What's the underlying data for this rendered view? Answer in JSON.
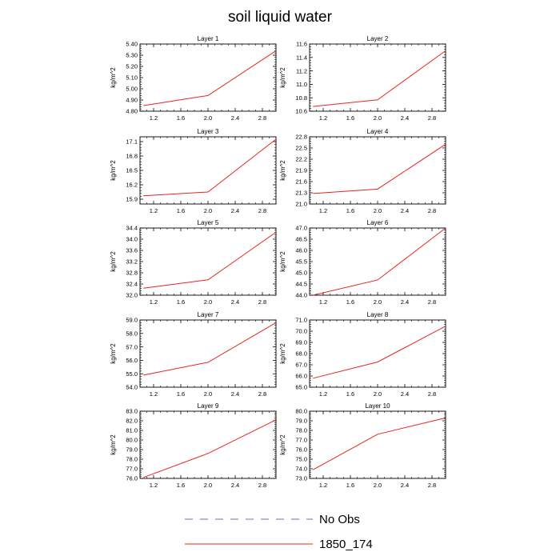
{
  "figure": {
    "title": "soil liquid water"
  },
  "legend": {
    "entries": [
      {
        "label": "No Obs",
        "color": "#4b3f9a",
        "style": "dashed"
      },
      {
        "label": "1850_174",
        "color": "#e8251f",
        "style": "solid"
      }
    ]
  },
  "chart_data": [
    {
      "type": "line",
      "title": "Layer 1",
      "ylabel": "kg/m^2",
      "xlim": [
        1.0,
        3.0
      ],
      "xticks": [
        1.2,
        1.6,
        2.0,
        2.4,
        2.8
      ],
      "xticklabels": [
        "1.2",
        "1.6",
        "2.0",
        "2.4",
        "2.8"
      ],
      "ylim": [
        4.8,
        5.4
      ],
      "yticks": [
        4.8,
        4.9,
        5.0,
        5.1,
        5.2,
        5.3,
        5.4
      ],
      "yticklabels": [
        "4.80",
        "4.90",
        "5.00",
        "5.10",
        "5.20",
        "5.30",
        "5.40"
      ],
      "series": [
        {
          "name": "1850_174",
          "x": [
            1.05,
            2.0,
            3.0
          ],
          "y": [
            4.85,
            4.94,
            5.34
          ]
        }
      ]
    },
    {
      "type": "line",
      "title": "Layer 2",
      "ylabel": "kg/m^2",
      "xlim": [
        1.0,
        3.0
      ],
      "xticks": [
        1.2,
        1.6,
        2.0,
        2.4,
        2.8
      ],
      "xticklabels": [
        "1.2",
        "1.6",
        "2.0",
        "2.4",
        "2.8"
      ],
      "ylim": [
        10.6,
        11.6
      ],
      "yticks": [
        10.6,
        10.8,
        11.0,
        11.2,
        11.4,
        11.6
      ],
      "yticklabels": [
        "10.6",
        "10.8",
        "11.0",
        "11.2",
        "11.4",
        "11.6"
      ],
      "series": [
        {
          "name": "1850_174",
          "x": [
            1.05,
            2.0,
            3.0
          ],
          "y": [
            10.67,
            10.77,
            11.5
          ]
        }
      ]
    },
    {
      "type": "line",
      "title": "Layer 3",
      "ylabel": "kg/m^2",
      "xlim": [
        1.0,
        3.0
      ],
      "xticks": [
        1.2,
        1.6,
        2.0,
        2.4,
        2.8
      ],
      "xticklabels": [
        "1.2",
        "1.6",
        "2.0",
        "2.4",
        "2.8"
      ],
      "ylim": [
        15.8,
        17.2
      ],
      "yticks": [
        15.9,
        16.2,
        16.5,
        16.8,
        17.1
      ],
      "yticklabels": [
        "15.9",
        "16.2",
        "16.5",
        "16.8",
        "17.1"
      ],
      "series": [
        {
          "name": "1850_174",
          "x": [
            1.05,
            2.0,
            3.0
          ],
          "y": [
            15.97,
            16.05,
            17.15
          ]
        }
      ]
    },
    {
      "type": "line",
      "title": "Layer 4",
      "ylabel": "kg/m^2",
      "xlim": [
        1.0,
        3.0
      ],
      "xticks": [
        1.2,
        1.6,
        2.0,
        2.4,
        2.8
      ],
      "xticklabels": [
        "1.2",
        "1.6",
        "2.0",
        "2.4",
        "2.8"
      ],
      "ylim": [
        21.0,
        22.8
      ],
      "yticks": [
        21.0,
        21.3,
        21.6,
        21.9,
        22.2,
        22.5,
        22.8
      ],
      "yticklabels": [
        "21.0",
        "21.3",
        "21.6",
        "21.9",
        "22.2",
        "22.5",
        "22.8"
      ],
      "series": [
        {
          "name": "1850_174",
          "x": [
            1.05,
            2.0,
            3.0
          ],
          "y": [
            21.28,
            21.4,
            22.6
          ]
        }
      ]
    },
    {
      "type": "line",
      "title": "Layer 5",
      "ylabel": "kg/m^2",
      "xlim": [
        1.0,
        3.0
      ],
      "xticks": [
        1.2,
        1.6,
        2.0,
        2.4,
        2.8
      ],
      "xticklabels": [
        "1.2",
        "1.6",
        "2.0",
        "2.4",
        "2.8"
      ],
      "ylim": [
        32.0,
        34.4
      ],
      "yticks": [
        32.0,
        32.4,
        32.8,
        33.2,
        33.6,
        34.0,
        34.4
      ],
      "yticklabels": [
        "32.0",
        "32.4",
        "32.8",
        "33.2",
        "33.6",
        "34.0",
        "34.4"
      ],
      "series": [
        {
          "name": "1850_174",
          "x": [
            1.05,
            2.0,
            3.0
          ],
          "y": [
            32.25,
            32.55,
            34.25
          ]
        }
      ]
    },
    {
      "type": "line",
      "title": "Layer 6",
      "ylabel": "kg/m^2",
      "xlim": [
        1.0,
        3.0
      ],
      "xticks": [
        1.2,
        1.6,
        2.0,
        2.4,
        2.8
      ],
      "xticklabels": [
        "1.2",
        "1.6",
        "2.0",
        "2.4",
        "2.8"
      ],
      "ylim": [
        44.0,
        47.0
      ],
      "yticks": [
        44.0,
        44.5,
        45.0,
        45.5,
        46.0,
        46.5,
        47.0
      ],
      "yticklabels": [
        "44.0",
        "44.5",
        "45.0",
        "45.5",
        "46.0",
        "46.5",
        "47.0"
      ],
      "series": [
        {
          "name": "1850_174",
          "x": [
            1.05,
            2.0,
            3.0
          ],
          "y": [
            44.0,
            44.68,
            47.0
          ]
        }
      ]
    },
    {
      "type": "line",
      "title": "Layer 7",
      "ylabel": "kg/m^2",
      "xlim": [
        1.0,
        3.0
      ],
      "xticks": [
        1.2,
        1.6,
        2.0,
        2.4,
        2.8
      ],
      "xticklabels": [
        "1.2",
        "1.6",
        "2.0",
        "2.4",
        "2.8"
      ],
      "ylim": [
        54.0,
        59.0
      ],
      "yticks": [
        54.0,
        55.0,
        56.0,
        57.0,
        58.0,
        59.0
      ],
      "yticklabels": [
        "54.0",
        "55.0",
        "56.0",
        "57.0",
        "58.0",
        "59.0"
      ],
      "series": [
        {
          "name": "1850_174",
          "x": [
            1.05,
            2.0,
            3.0
          ],
          "y": [
            54.9,
            55.85,
            58.8
          ]
        }
      ]
    },
    {
      "type": "line",
      "title": "Layer 8",
      "ylabel": "kg/m^2",
      "xlim": [
        1.0,
        3.0
      ],
      "xticks": [
        1.2,
        1.6,
        2.0,
        2.4,
        2.8
      ],
      "xticklabels": [
        "1.2",
        "1.6",
        "2.0",
        "2.4",
        "2.8"
      ],
      "ylim": [
        65.0,
        71.0
      ],
      "yticks": [
        65.0,
        66.0,
        67.0,
        68.0,
        69.0,
        70.0,
        71.0
      ],
      "yticklabels": [
        "65.0",
        "66.0",
        "67.0",
        "68.0",
        "69.0",
        "70.0",
        "71.0"
      ],
      "series": [
        {
          "name": "1850_174",
          "x": [
            1.05,
            2.0,
            3.0
          ],
          "y": [
            65.8,
            67.25,
            70.45
          ]
        }
      ]
    },
    {
      "type": "line",
      "title": "Layer 9",
      "ylabel": "kg/m^2",
      "xlim": [
        1.0,
        3.0
      ],
      "xticks": [
        1.2,
        1.6,
        2.0,
        2.4,
        2.8
      ],
      "xticklabels": [
        "1.2",
        "1.6",
        "2.0",
        "2.4",
        "2.8"
      ],
      "ylim": [
        76.0,
        83.0
      ],
      "yticks": [
        76.0,
        77.0,
        78.0,
        79.0,
        80.0,
        81.0,
        82.0,
        83.0
      ],
      "yticklabels": [
        "76.0",
        "77.0",
        "78.0",
        "79.0",
        "80.0",
        "81.0",
        "82.0",
        "83.0"
      ],
      "series": [
        {
          "name": "1850_174",
          "x": [
            1.05,
            2.0,
            3.0
          ],
          "y": [
            76.1,
            78.6,
            82.1
          ]
        }
      ]
    },
    {
      "type": "line",
      "title": "Layer 10",
      "ylabel": "kg/m^2",
      "xlim": [
        1.0,
        3.0
      ],
      "xticks": [
        1.2,
        1.6,
        2.0,
        2.4,
        2.8
      ],
      "xticklabels": [
        "1.2",
        "1.6",
        "2.0",
        "2.4",
        "2.8"
      ],
      "ylim": [
        73.0,
        80.0
      ],
      "yticks": [
        73.0,
        74.0,
        75.0,
        76.0,
        77.0,
        78.0,
        79.0,
        80.0
      ],
      "yticklabels": [
        "73.0",
        "74.0",
        "75.0",
        "76.0",
        "77.0",
        "78.0",
        "79.0",
        "80.0"
      ],
      "series": [
        {
          "name": "1850_174",
          "x": [
            1.05,
            2.0,
            3.0
          ],
          "y": [
            73.9,
            77.6,
            79.3
          ]
        }
      ]
    }
  ]
}
